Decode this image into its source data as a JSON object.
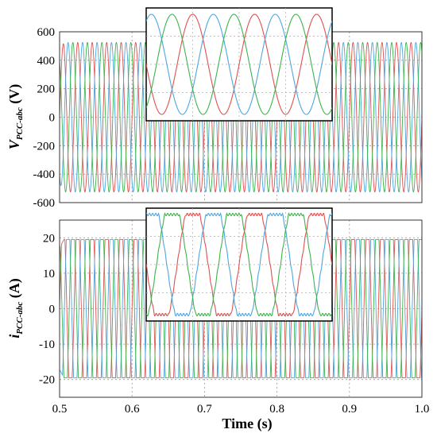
{
  "chart_data": [
    {
      "type": "line",
      "ylabel_main": "V",
      "ylabel_sub": "PCC-abc",
      "ylabel_unit": " (V)",
      "xlim": [
        0.5,
        1.0
      ],
      "ylim": [
        -600,
        600
      ],
      "yticks": [
        -600,
        -400,
        -200,
        0,
        200,
        400,
        600
      ],
      "ytick_labels": [
        "-600",
        "-400",
        "-200",
        "0",
        "200",
        "400",
        "600"
      ],
      "grid": true,
      "frequency_hz": 50,
      "amplitude": 525,
      "phase_deg": [
        0,
        -120,
        120
      ],
      "series": [
        {
          "color": "#e05050",
          "phase_deg": 0
        },
        {
          "color": "#4da6e0",
          "phase_deg": -120
        },
        {
          "color": "#3cb44b",
          "phase_deg": 120
        }
      ],
      "inset": {
        "x_range": [
          0.65,
          0.71
        ],
        "waveform": "sine"
      }
    },
    {
      "type": "line",
      "ylabel_main": "i",
      "ylabel_sub": "PCC-abc",
      "ylabel_unit": " (A)",
      "xlim": [
        0.5,
        1.0
      ],
      "ylim": [
        -25,
        25
      ],
      "yticks": [
        -20,
        -10,
        0,
        10,
        20
      ],
      "ytick_labels": [
        "-20",
        "-10",
        "0",
        "10",
        "20"
      ],
      "grid": true,
      "frequency_hz": 50,
      "amplitude": 19.5,
      "phase_deg": [
        0,
        -120,
        120
      ],
      "series": [
        {
          "color": "#e05050",
          "phase_deg": 0
        },
        {
          "color": "#4da6e0",
          "phase_deg": -120
        },
        {
          "color": "#3cb44b",
          "phase_deg": 120
        }
      ],
      "inset": {
        "x_range": [
          0.65,
          0.71
        ],
        "waveform": "trapezoidal"
      }
    }
  ],
  "xaxis": {
    "xlabel": "Time (s)",
    "xticks": [
      0.5,
      0.6,
      0.7,
      0.8,
      0.9,
      1.0
    ],
    "xtick_labels": [
      "0.5",
      "0.6",
      "0.7",
      "0.8",
      "0.9",
      "1.0"
    ]
  }
}
